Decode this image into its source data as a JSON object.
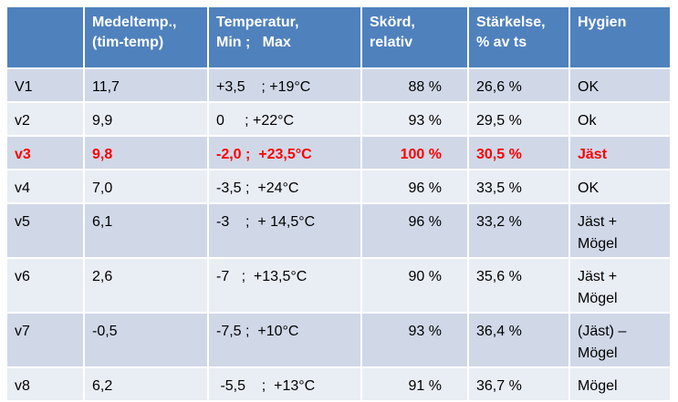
{
  "table": {
    "headers": [
      {
        "line1": "",
        "line2": ""
      },
      {
        "line1": "Medeltemp.,",
        "line2": "(tim-temp)"
      },
      {
        "line1": "Temperatur,",
        "line2": "Min ;   Max"
      },
      {
        "line1": "Skörd,",
        "line2": "relativ"
      },
      {
        "line1": "Stärkelse,",
        "line2": "% av ts"
      },
      {
        "line1": "Hygien",
        "line2": ""
      }
    ],
    "rows": [
      {
        "id": "V1",
        "medel": "11,7",
        "temp": "+3,5    ; +19°C",
        "skord": "88 %",
        "starkelse": "26,6 %",
        "hygien1": "OK",
        "hygien2": ""
      },
      {
        "id": "v2",
        "medel": "9,9",
        "temp": "0     ; +22°C",
        "skord": "93 %",
        "starkelse": "29,5 %",
        "hygien1": "Ok",
        "hygien2": ""
      },
      {
        "id": "v3",
        "medel": "9,8",
        "temp": "-2,0 ;  +23,5°C",
        "skord": "100 %",
        "starkelse": "30,5 %",
        "hygien1": "Jäst",
        "hygien2": ""
      },
      {
        "id": "v4",
        "medel": "7,0",
        "temp": "-3,5 ;  +24°C",
        "skord": "96 %",
        "starkelse": "33,5 %",
        "hygien1": "OK",
        "hygien2": ""
      },
      {
        "id": "v5",
        "medel": "6,1",
        "temp": "-3    ;  + 14,5°C",
        "skord": "96 %",
        "starkelse": "33,2 %",
        "hygien1": "Jäst +",
        "hygien2": "Mögel"
      },
      {
        "id": "v6",
        "medel": "2,6",
        "temp": "-7   ;  +13,5°C",
        "skord": "90 %",
        "starkelse": "35,6 %",
        "hygien1": "Jäst +",
        "hygien2": "Mögel"
      },
      {
        "id": "v7",
        "medel": "-0,5",
        "temp": "-7,5 ;  +10°C",
        "skord": "93 %",
        "starkelse": "36,4 %",
        "hygien1": "(Jäst) –",
        "hygien2": "Mögel"
      },
      {
        "id": "v8",
        "medel": "6,2",
        "temp": " -5,5    ;  +13°C",
        "skord": "91 %",
        "starkelse": "36,7 %",
        "hygien1": "Mögel",
        "hygien2": ""
      }
    ]
  },
  "colors": {
    "header": "#4f81bd",
    "row_odd": "#d0d8e8",
    "row_even": "#e9edf4",
    "highlight": "#ff0000"
  }
}
